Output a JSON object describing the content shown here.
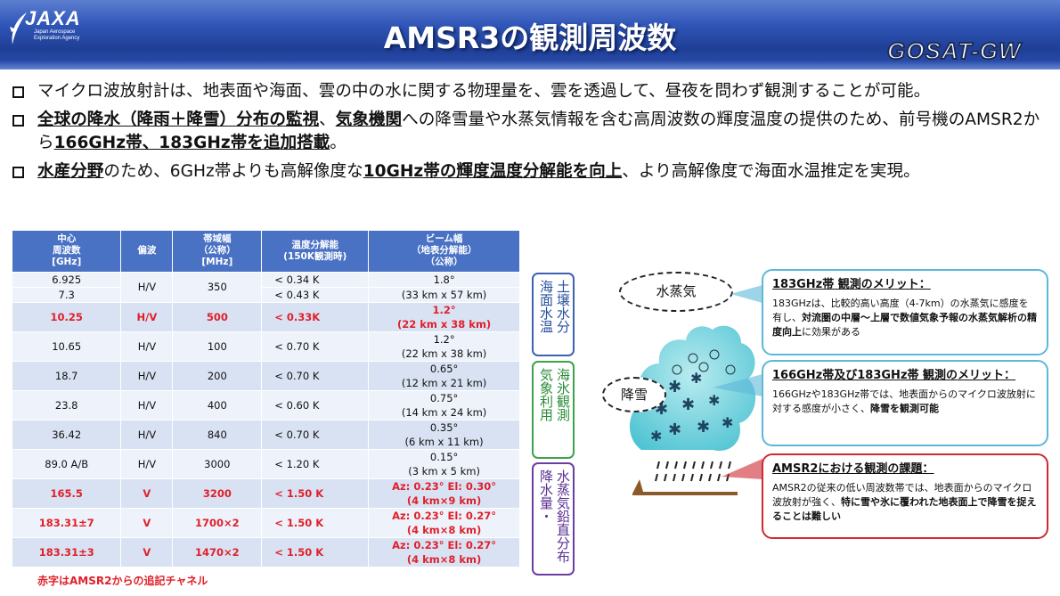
{
  "header": {
    "logo_text": "JAXA",
    "logo_sub": "Japan Aerospace Exploration Agency",
    "title": "AMSR3の観測周波数",
    "mission_logo": "GOSAT-GW",
    "colors": {
      "header_blue": "#2c4fb0",
      "table_header": "#4a72c4",
      "red": "#e0202a"
    }
  },
  "bullets": [
    {
      "segments": [
        {
          "t": "マイクロ波放射計は、地表面や海面、雲の中の水に関する物理量を、雲を透過して、昼夜を問わず観測することが可能。",
          "hl": false
        }
      ]
    },
    {
      "segments": [
        {
          "t": "全球の降水（降雨＋降雪）分布の監視",
          "hl": true
        },
        {
          "t": "、",
          "hl": false
        },
        {
          "t": "気象機関",
          "hl": true
        },
        {
          "t": "への降雪量や水蒸気情報を含む高周波数の輝度温度の提供のため、前号機のAMSR2から",
          "hl": false
        },
        {
          "t": "166GHz帯、183GHz帯を追加搭載",
          "hl": true
        },
        {
          "t": "。",
          "hl": false
        }
      ]
    },
    {
      "segments": [
        {
          "t": "水産分野",
          "hl": true
        },
        {
          "t": "のため、6GHz帯よりも高解像度な",
          "hl": false
        },
        {
          "t": "10GHz帯の輝度温度分解能を向上",
          "hl": true
        },
        {
          "t": "、より高解像度で海面水温推定を実現。",
          "hl": false
        }
      ]
    }
  ],
  "table": {
    "headers": [
      "中心\n周波数\n[GHz]",
      "偏波",
      "帯域幅\n（公称）\n[MHz]",
      "温度分解能\n(150K観測時)",
      "ビーム幅\n（地表分解能）\n（公称）"
    ],
    "rows": [
      {
        "freq": "6.925",
        "pol": "H/V",
        "bw": "350",
        "res": "< 0.34 K",
        "beam": "1.8°",
        "red": false,
        "shade": "even",
        "merge_start": true
      },
      {
        "freq": "7.3",
        "pol": "",
        "bw": "",
        "res": "< 0.43 K",
        "beam": "(33 km x 57 km)",
        "red": false,
        "shade": "even",
        "merge_end": true
      },
      {
        "freq": "10.25",
        "pol": "H/V",
        "bw": "500",
        "res": "< 0.33K",
        "beam": "1.2°\n(22 km x 38 km)",
        "red": true,
        "shade": "odd"
      },
      {
        "freq": "10.65",
        "pol": "H/V",
        "bw": "100",
        "res": "< 0.70 K",
        "beam": "1.2°\n(22 km x 38 km)",
        "red": false,
        "shade": "even"
      },
      {
        "freq": "18.7",
        "pol": "H/V",
        "bw": "200",
        "res": "< 0.70 K",
        "beam": "0.65°\n(12 km x 21 km)",
        "red": false,
        "shade": "odd"
      },
      {
        "freq": "23.8",
        "pol": "H/V",
        "bw": "400",
        "res": "< 0.60 K",
        "beam": "0.75°\n(14 km x 24 km)",
        "red": false,
        "shade": "even"
      },
      {
        "freq": "36.42",
        "pol": "H/V",
        "bw": "840",
        "res": "< 0.70 K",
        "beam": "0.35°\n(6 km x 11 km)",
        "red": false,
        "shade": "odd"
      },
      {
        "freq": "89.0 A/B",
        "pol": "H/V",
        "bw": "3000",
        "res": "< 1.20 K",
        "beam": "0.15°\n(3 km x 5 km)",
        "red": false,
        "shade": "even"
      },
      {
        "freq": "165.5",
        "pol": "V",
        "bw": "3200",
        "res": "< 1.50 K",
        "beam": "Az: 0.23°  El: 0.30°\n(4 km×9 km)",
        "red": true,
        "shade": "odd"
      },
      {
        "freq": "183.31±7",
        "pol": "V",
        "bw": "1700×2",
        "res": "< 1.50 K",
        "beam": "Az: 0.23°  El: 0.27°\n(4 km×8 km)",
        "red": true,
        "shade": "even"
      },
      {
        "freq": "183.31±3",
        "pol": "V",
        "bw": "1470×2",
        "res": "< 1.50 K",
        "beam": "Az: 0.23°  El: 0.27°\n(4 km×8 km)",
        "red": true,
        "shade": "odd"
      }
    ],
    "note": "赤字はAMSR2からの追記チャネル"
  },
  "categories": [
    {
      "text": "土壌水分\n海面水温"
    },
    {
      "text": "海氷観測\n気象利用"
    },
    {
      "text": "水蒸気鉛直分布\n降水量・"
    }
  ],
  "diagram": {
    "vapor_label": "水蒸気",
    "snow_label": "降雪"
  },
  "boxes": [
    {
      "title": "183GHz帯 観測のメリット：",
      "segments": [
        {
          "t": "183GHzは、比較的高い高度（4-7km）の水蒸気に感度を有し、",
          "b": false
        },
        {
          "t": "対流圏の中層～上層で数値気象予報の水蒸気解析の精度向上",
          "b": true
        },
        {
          "t": "に効果がある",
          "b": false
        }
      ]
    },
    {
      "title": "166GHz帯及び183GHz帯 観測のメリット：",
      "segments": [
        {
          "t": "166GHzや183GHz帯では、地表面からのマイクロ波放射に対する感度が小さく、",
          "b": false
        },
        {
          "t": "降雪を観測可能",
          "b": true
        }
      ]
    },
    {
      "title": "AMSR2における観測の課題：",
      "segments": [
        {
          "t": "AMSR2の従来の低い周波数帯では、地表面からのマイクロ波放射が強く、",
          "b": false
        },
        {
          "t": "特に雪や氷に覆われた地表面上で降雪を捉えることは難しい",
          "b": true
        }
      ]
    }
  ]
}
